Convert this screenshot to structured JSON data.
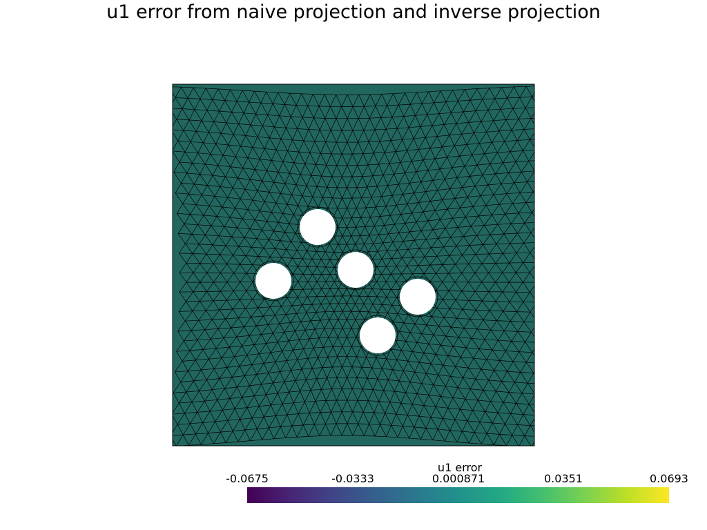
{
  "title": "u1 error from naive projection and inverse projection",
  "colors": {
    "mesh_fill": "#22675f",
    "mesh_edge": "#000000",
    "hole": "#ffffff"
  },
  "holes": [
    {
      "name": "hole-top"
    },
    {
      "name": "hole-center"
    },
    {
      "name": "hole-left"
    },
    {
      "name": "hole-right"
    },
    {
      "name": "hole-bottom"
    }
  ],
  "colorbar": {
    "title": "u1 error",
    "min": -0.0675,
    "max": 0.0693,
    "ticks": [
      "-0.0675",
      "-0.0333",
      "0.000871",
      "0.0351",
      "0.0693"
    ],
    "colormap": "viridis"
  }
}
